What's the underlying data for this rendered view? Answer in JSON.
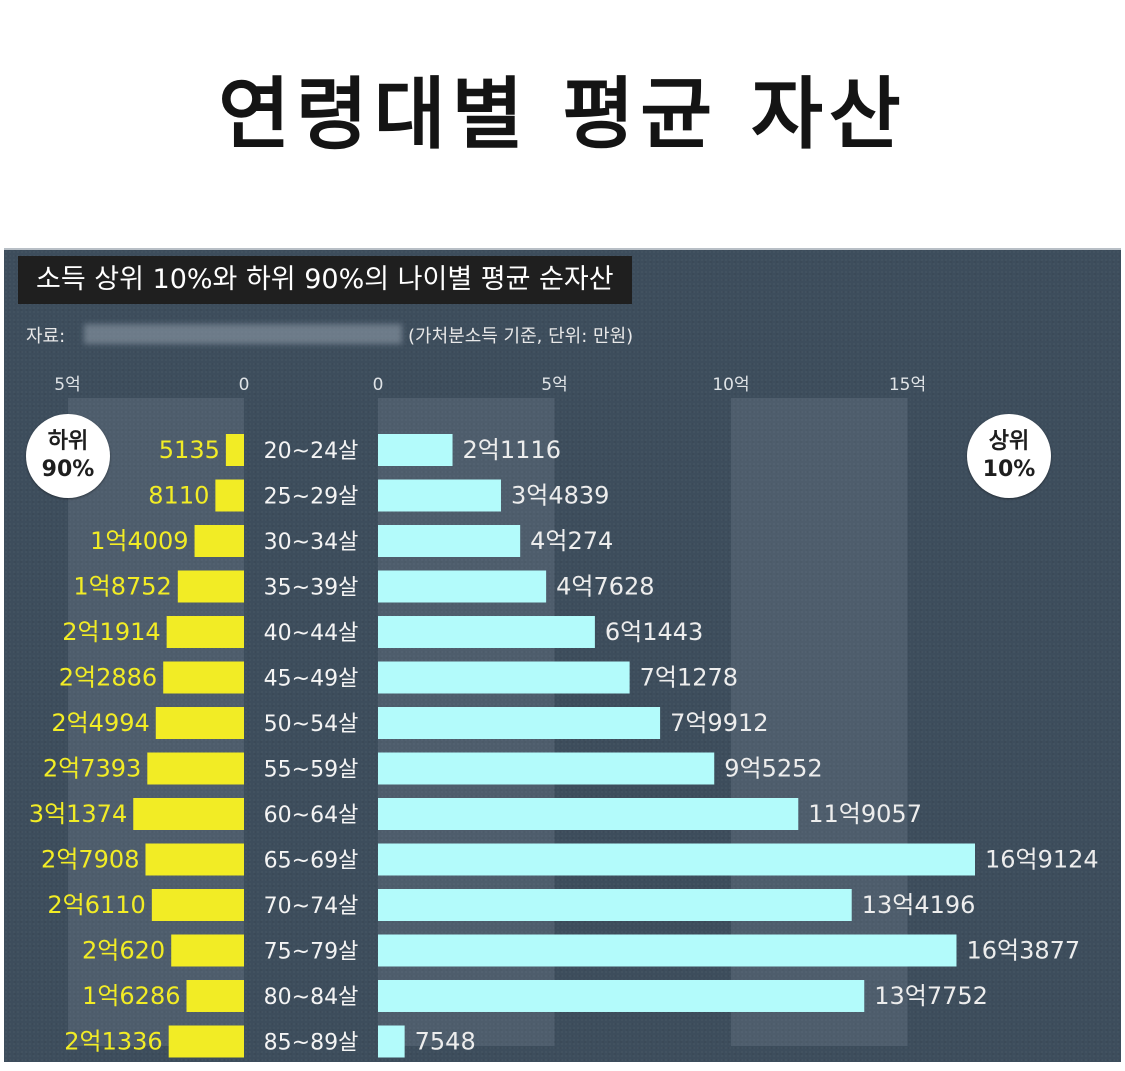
{
  "page": {
    "title": "연령대별 평균 자산"
  },
  "colors": {
    "panel": "#3d4d5c",
    "bottom_bar": "#f2ec25",
    "top_bar": "#b3fbfb",
    "label_yellow": "#f2ec25"
  },
  "chart_data": {
    "type": "bar",
    "orientation": "horizontal",
    "layout": "diverging",
    "subtitle": "소득 상위 10%와 하위 90%의 나이별 평균 순자산",
    "source_label": "자료:",
    "unit_note": "(가처분소득 기준, 단위: 만원)",
    "badge_bottom": {
      "line1": "하위",
      "line2": "90%"
    },
    "badge_top": {
      "line1": "상위",
      "line2": "10%"
    },
    "categories": [
      "20~24살",
      "25~29살",
      "30~34살",
      "35~39살",
      "40~44살",
      "45~49살",
      "50~54살",
      "55~59살",
      "60~64살",
      "65~69살",
      "70~74살",
      "75~79살",
      "80~84살",
      "85~89살"
    ],
    "series": [
      {
        "name": "하위 90%",
        "values": [
          5135,
          8110,
          14009,
          18752,
          21914,
          22886,
          24994,
          27393,
          31374,
          27908,
          26110,
          20620,
          16286,
          21336
        ],
        "labels": [
          "5135",
          "8110",
          "1억4009",
          "1억8752",
          "2억1914",
          "2억2886",
          "2억4994",
          "2억7393",
          "3억1374",
          "2억7908",
          "2억6110",
          "2억620",
          "1억6286",
          "2억1336"
        ]
      },
      {
        "name": "상위 10%",
        "values": [
          21116,
          34839,
          40274,
          47628,
          61443,
          71278,
          79912,
          95252,
          119057,
          169124,
          134196,
          163877,
          137752,
          7548
        ],
        "labels": [
          "2억1116",
          "3억4839",
          "4억274",
          "4억7628",
          "6억1443",
          "7억1278",
          "7억9912",
          "9억5252",
          "11억9057",
          "16억9124",
          "13억4196",
          "16억3877",
          "13억7752",
          "7548"
        ]
      }
    ],
    "x_left": {
      "ticks": [
        "5억",
        "0"
      ],
      "tick_values": [
        50000,
        0
      ]
    },
    "x_right": {
      "ticks": [
        "0",
        "5억",
        "10억",
        "15억"
      ],
      "tick_values": [
        0,
        50000,
        100000,
        150000
      ]
    }
  }
}
